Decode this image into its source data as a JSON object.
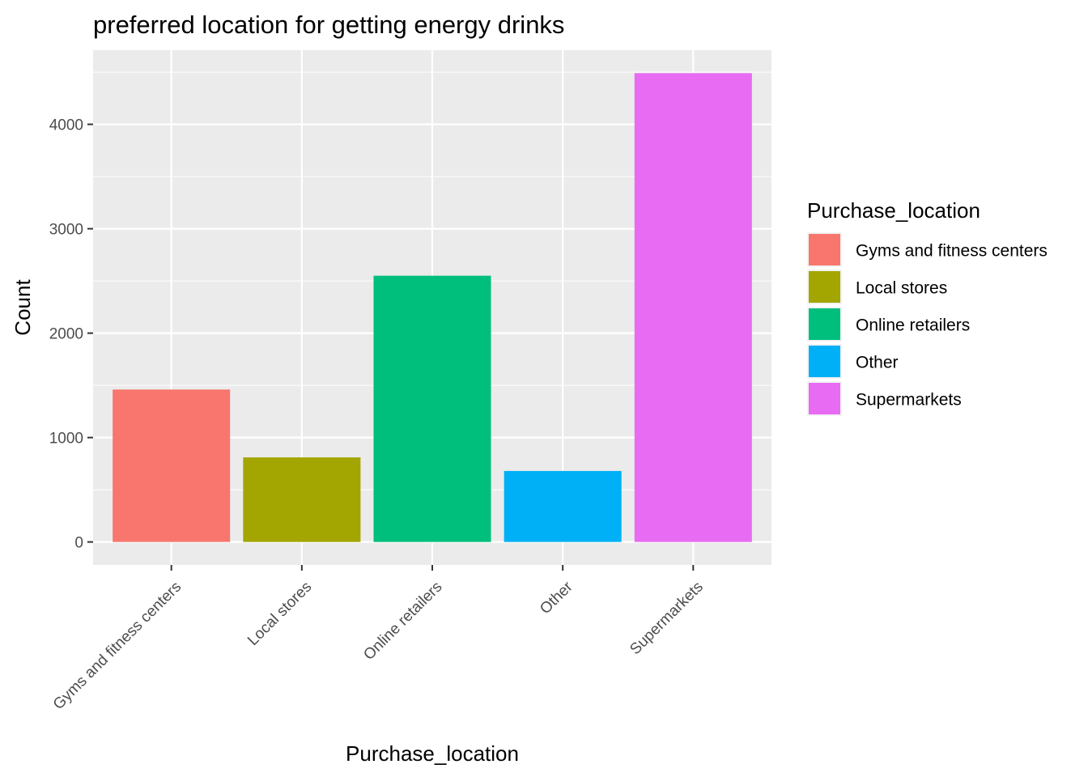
{
  "chart_data": {
    "type": "bar",
    "title": "preferred location for getting energy drinks",
    "xlabel": "Purchase_location",
    "ylabel": "Count",
    "categories": [
      "Gyms and fitness centers",
      "Local stores",
      "Online retailers",
      "Other",
      "Supermarkets"
    ],
    "values": [
      1460,
      810,
      2550,
      680,
      4490
    ],
    "colors": [
      "#F8766D",
      "#A3A500",
      "#00BF7D",
      "#00B0F6",
      "#E76BF3"
    ],
    "yticks": [
      0,
      1000,
      2000,
      3000,
      4000
    ],
    "yticks_labels": [
      "0",
      "1000",
      "2000",
      "3000",
      "4000"
    ],
    "ylim": [
      -220,
      4710
    ],
    "grid": true,
    "panel_background": "#EBEBEB",
    "legend": {
      "title": "Purchase_location",
      "position": "right",
      "entries": [
        "Gyms and fitness centers",
        "Local stores",
        "Online retailers",
        "Other",
        "Supermarkets"
      ]
    }
  }
}
